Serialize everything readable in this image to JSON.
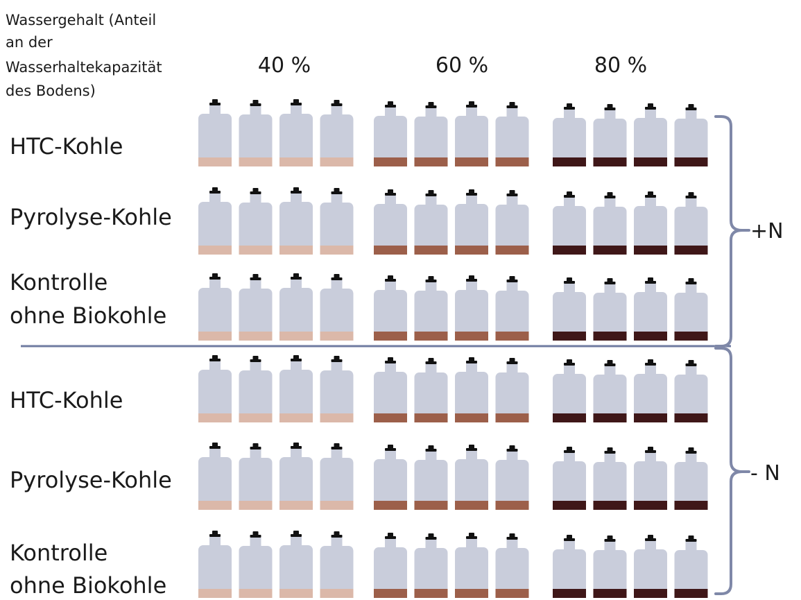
{
  "header": {
    "lines": [
      "Wassergehalt (Anteil",
      "an der",
      "Wasserhaltekapazität",
      "des Bodens)"
    ]
  },
  "columns": [
    "40 %",
    "60 %",
    "80 %"
  ],
  "groups": [
    {
      "label": "+N",
      "rows": [
        {
          "label": [
            "HTC-Kohle"
          ]
        },
        {
          "label": [
            "Pyrolyse-Kohle"
          ]
        },
        {
          "label": [
            "Kontrolle",
            "ohne Biokohle"
          ]
        }
      ]
    },
    {
      "label": "- N",
      "rows": [
        {
          "label": [
            "HTC-Kohle"
          ]
        },
        {
          "label": [
            "Pyrolyse-Kohle"
          ]
        },
        {
          "label": [
            "Kontrolle",
            "ohne Biokohle"
          ]
        }
      ]
    }
  ],
  "bottles_per_column": 4,
  "colors": {
    "bottle": "#c9cddb",
    "cap": "#111111",
    "soil": [
      "#dbb8a9",
      "#9c5f4a",
      "#3f1718"
    ],
    "bracket": "#7f88a8",
    "divider": "#6f7ba0"
  }
}
